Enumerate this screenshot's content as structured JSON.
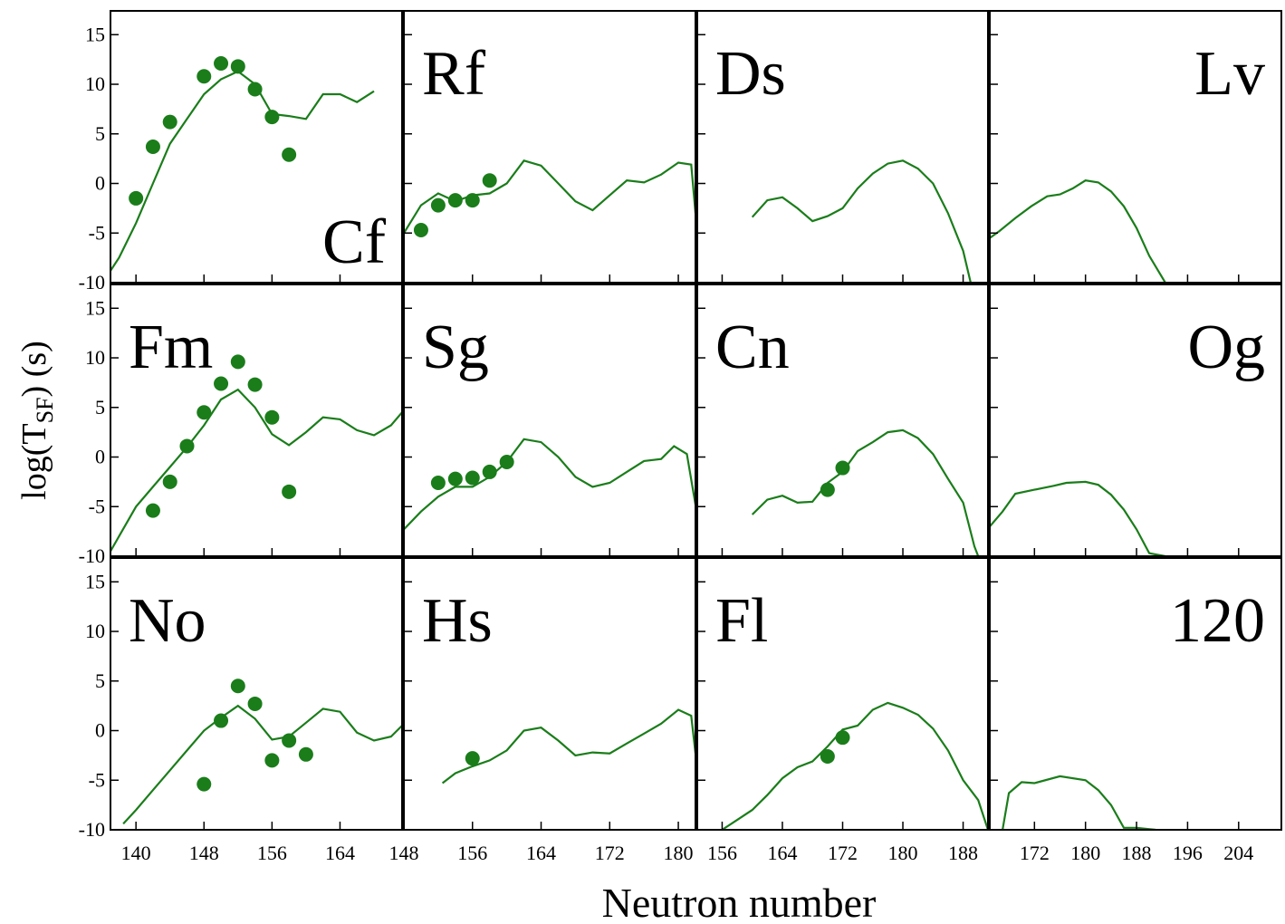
{
  "xlabel": "Neutron number",
  "ylabel": {
    "main": "log(T",
    "sub": "SF",
    "tail": ") (s)"
  },
  "chart_data": [
    {
      "type": "line",
      "label": "Cf",
      "label_corner": "bottom-right",
      "color": "#1a7d1a",
      "xlim": [
        137,
        171.3
      ],
      "xticks": [
        140,
        148,
        156,
        164
      ],
      "ylim": [
        -10,
        17.4
      ],
      "yticks": [
        -10,
        -5,
        0,
        5,
        10,
        15
      ],
      "x": [
        137,
        138,
        140,
        142,
        144,
        146,
        148,
        150,
        152,
        154,
        156,
        158,
        160,
        162,
        164,
        166,
        168
      ],
      "values": [
        -8.8,
        -7.5,
        -4,
        0,
        4,
        6.5,
        9,
        10.5,
        11.3,
        10,
        7,
        6.8,
        6.5,
        9,
        9,
        8.2,
        9.3
      ],
      "points_x": [
        140,
        142,
        144,
        148,
        150,
        152,
        154,
        156,
        158
      ],
      "points": [
        -1.5,
        3.7,
        6.2,
        10.8,
        12.1,
        11.8,
        9.5,
        6.7,
        2.9
      ]
    },
    {
      "type": "line",
      "label": "Rf",
      "label_corner": "top-left",
      "color": "#1a7d1a",
      "xlim": [
        148,
        182
      ],
      "xticks": [
        148,
        156,
        164,
        172,
        180
      ],
      "ylim": [
        -10,
        17.4
      ],
      "yticks": [
        -10,
        -5,
        0,
        5,
        10,
        15
      ],
      "x": [
        148,
        150,
        152,
        154,
        156,
        158,
        160,
        162,
        164,
        166,
        168,
        170,
        172,
        174,
        176,
        178,
        180,
        181.5,
        182
      ],
      "values": [
        -5,
        -2.2,
        -1,
        -1.8,
        -1.2,
        -1,
        0,
        2.3,
        1.8,
        0,
        -1.8,
        -2.7,
        -1.2,
        0.3,
        0.1,
        0.9,
        2.1,
        1.9,
        -3
      ],
      "points_x": [
        150,
        152,
        154,
        156,
        158
      ],
      "points": [
        -4.7,
        -2.2,
        -1.7,
        -1.7,
        0.3
      ]
    },
    {
      "type": "line",
      "label": "Ds",
      "label_corner": "top-left",
      "color": "#1a7d1a",
      "xlim": [
        152.7,
        191.3
      ],
      "xticks": [
        156,
        164,
        172,
        180,
        188
      ],
      "ylim": [
        -10,
        17.4
      ],
      "yticks": [
        -10,
        -5,
        0,
        5,
        10,
        15
      ],
      "x": [
        160,
        162,
        164,
        166,
        168,
        170,
        172,
        174,
        176,
        178,
        180,
        182,
        184,
        186,
        188,
        189
      ],
      "values": [
        -3.4,
        -1.7,
        -1.4,
        -2.5,
        -3.8,
        -3.3,
        -2.5,
        -0.5,
        1,
        2,
        2.3,
        1.5,
        0,
        -3,
        -6.8,
        -10
      ],
      "points_x": [],
      "points": []
    },
    {
      "type": "line",
      "label": "Lv",
      "label_corner": "top-right",
      "color": "#1a7d1a",
      "xlim": [
        165,
        210.7
      ],
      "xticks": [
        172,
        180,
        188,
        196,
        204
      ],
      "ylim": [
        -10,
        17.4
      ],
      "yticks": [
        -10,
        -5,
        0,
        5,
        10,
        15
      ],
      "x": [
        165,
        166.5,
        169,
        171.5,
        174,
        176,
        178,
        180,
        182,
        184,
        186,
        188,
        190,
        192.5
      ],
      "values": [
        -5.5,
        -4.8,
        -3.5,
        -2.3,
        -1.3,
        -1.1,
        -0.5,
        0.3,
        0.1,
        -0.8,
        -2.3,
        -4.5,
        -7.3,
        -10
      ],
      "points_x": [],
      "points": []
    },
    {
      "type": "line",
      "label": "Fm",
      "label_corner": "top-left",
      "color": "#1a7d1a",
      "xlim": [
        137,
        171.3
      ],
      "xticks": [
        140,
        148,
        156,
        164
      ],
      "ylim": [
        -10,
        17.4
      ],
      "yticks": [
        -10,
        -5,
        0,
        5,
        10,
        15
      ],
      "x": [
        137,
        138,
        140,
        142,
        144,
        146,
        148,
        150,
        152,
        154,
        156,
        158,
        160,
        162,
        164,
        166,
        168,
        170,
        171.3
      ],
      "values": [
        -9.5,
        -8,
        -5,
        -3,
        -1,
        1,
        3.2,
        5.8,
        6.8,
        5,
        2.3,
        1.2,
        2.5,
        4,
        3.8,
        2.7,
        2.2,
        3.2,
        4.5
      ],
      "points_x": [
        142,
        144,
        146,
        148,
        150,
        152,
        154,
        156,
        158
      ],
      "points": [
        -5.4,
        -2.5,
        1.1,
        4.5,
        7.4,
        9.6,
        7.3,
        4,
        -3.5
      ]
    },
    {
      "type": "line",
      "label": "Sg",
      "label_corner": "top-left",
      "color": "#1a7d1a",
      "xlim": [
        148,
        182
      ],
      "xticks": [
        148,
        156,
        164,
        172,
        180
      ],
      "ylim": [
        -10,
        17.4
      ],
      "yticks": [
        -10,
        -5,
        0,
        5,
        10,
        15
      ],
      "x": [
        148,
        150,
        152,
        154,
        156,
        158,
        160,
        162,
        164,
        166,
        168,
        170,
        172,
        174,
        176,
        178,
        179.5,
        181,
        182
      ],
      "values": [
        -7.3,
        -5.5,
        -4,
        -3,
        -3,
        -2,
        -0.5,
        1.8,
        1.5,
        0,
        -2,
        -3,
        -2.6,
        -1.5,
        -0.4,
        -0.2,
        1.1,
        0.3,
        -4.8
      ],
      "points_x": [
        152,
        154,
        156,
        158,
        160
      ],
      "points": [
        -2.6,
        -2.2,
        -2.1,
        -1.5,
        -0.5
      ]
    },
    {
      "type": "line",
      "label": "Cn",
      "label_corner": "top-left",
      "color": "#1a7d1a",
      "xlim": [
        152.7,
        191.3
      ],
      "xticks": [
        156,
        164,
        172,
        180,
        188
      ],
      "ylim": [
        -10,
        17.4
      ],
      "yticks": [
        -10,
        -5,
        0,
        5,
        10,
        15
      ],
      "x": [
        160,
        162,
        164,
        166,
        168,
        170,
        172,
        174,
        176,
        178,
        180,
        182,
        184,
        186,
        188,
        189.5,
        190
      ],
      "values": [
        -5.8,
        -4.3,
        -3.9,
        -4.6,
        -4.5,
        -2.6,
        -1.5,
        0.6,
        1.5,
        2.5,
        2.7,
        1.9,
        0.3,
        -2.2,
        -4.6,
        -9,
        -10
      ],
      "points_x": [
        170,
        172
      ],
      "points": [
        -3.3,
        -1.1
      ]
    },
    {
      "type": "line",
      "label": "Og",
      "label_corner": "top-right",
      "color": "#1a7d1a",
      "xlim": [
        165,
        210.7
      ],
      "xticks": [
        172,
        180,
        188,
        196,
        204
      ],
      "ylim": [
        -10,
        17.4
      ],
      "yticks": [
        -10,
        -5,
        0,
        5,
        10,
        15
      ],
      "x": [
        165,
        167,
        169,
        172,
        175,
        177,
        180,
        182,
        184,
        186,
        188,
        190,
        192.5
      ],
      "values": [
        -7,
        -5.5,
        -3.7,
        -3.3,
        -2.9,
        -2.6,
        -2.5,
        -2.8,
        -3.8,
        -5.3,
        -7.3,
        -9.7,
        -10
      ],
      "points_x": [],
      "points": []
    },
    {
      "type": "line",
      "label": "No",
      "label_corner": "top-left",
      "color": "#1a7d1a",
      "xlim": [
        137,
        171.3
      ],
      "xticks": [
        140,
        148,
        156,
        164
      ],
      "ylim": [
        -10,
        17.4
      ],
      "yticks": [
        -10,
        -5,
        0,
        5,
        10,
        15
      ],
      "x": [
        138.5,
        140,
        142,
        144,
        146,
        148,
        150,
        152,
        154,
        156,
        158,
        160,
        162,
        164,
        166,
        168,
        170,
        171.3
      ],
      "values": [
        -9.4,
        -8,
        -6,
        -4,
        -2,
        0,
        1.3,
        2.5,
        1.2,
        -0.9,
        -0.6,
        0.8,
        2.2,
        1.9,
        -0.2,
        -1,
        -0.6,
        0.5
      ],
      "points_x": [
        148,
        150,
        152,
        154,
        156,
        158,
        160
      ],
      "points": [
        -5.4,
        1,
        4.5,
        2.7,
        -3,
        -1,
        -2.4
      ]
    },
    {
      "type": "line",
      "label": "Hs",
      "label_corner": "top-left",
      "color": "#1a7d1a",
      "xlim": [
        148,
        182
      ],
      "xticks": [
        148,
        156,
        164,
        172,
        180
      ],
      "ylim": [
        -10,
        17.4
      ],
      "yticks": [
        -10,
        -5,
        0,
        5,
        10,
        15
      ],
      "x": [
        152.5,
        154,
        156,
        158,
        160,
        162,
        164,
        166,
        168,
        170,
        172,
        174,
        176,
        178,
        180,
        181.5,
        182
      ],
      "values": [
        -5.3,
        -4.3,
        -3.6,
        -3,
        -2,
        0,
        0.3,
        -1,
        -2.5,
        -2.2,
        -2.3,
        -1.3,
        -0.3,
        0.7,
        2.1,
        1.5,
        -2.3
      ],
      "points_x": [
        156
      ],
      "points": [
        -2.8
      ]
    },
    {
      "type": "line",
      "label": "Fl",
      "label_corner": "top-left",
      "color": "#1a7d1a",
      "xlim": [
        152.7,
        191.3
      ],
      "xticks": [
        156,
        164,
        172,
        180,
        188
      ],
      "ylim": [
        -10,
        17.4
      ],
      "yticks": [
        -10,
        -5,
        0,
        5,
        10,
        15
      ],
      "x": [
        156,
        158,
        160,
        162,
        164,
        166,
        168,
        170,
        172,
        174,
        176,
        178,
        180,
        182,
        184,
        186,
        188,
        190,
        191.3
      ],
      "values": [
        -10,
        -9,
        -8,
        -6.5,
        -4.8,
        -3.7,
        -3.1,
        -1.6,
        0.1,
        0.5,
        2.1,
        2.8,
        2.3,
        1.6,
        0.2,
        -2,
        -5,
        -7,
        -10
      ],
      "points_x": [
        170,
        172
      ],
      "points": [
        -2.6,
        -0.7
      ]
    },
    {
      "type": "line",
      "label": "120",
      "label_corner": "top-right",
      "color": "#1a7d1a",
      "xlim": [
        165,
        210.7
      ],
      "xticks": [
        172,
        180,
        188,
        196,
        204
      ],
      "ylim": [
        -10,
        17.4
      ],
      "yticks": [
        -10,
        -5,
        0,
        5,
        10,
        15
      ],
      "x": [
        167,
        168,
        170,
        172,
        176,
        180,
        182,
        184,
        186,
        188,
        191
      ],
      "values": [
        -10,
        -6.3,
        -5.2,
        -5.3,
        -4.6,
        -5,
        -6,
        -7.5,
        -9.8,
        -9.8,
        -10
      ],
      "points_x": [],
      "points": []
    }
  ]
}
